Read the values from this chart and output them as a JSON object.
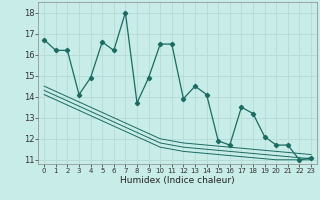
{
  "xlabel": "Humidex (Indice chaleur)",
  "bg_color": "#c8ece8",
  "grid_color": "#b8dcd8",
  "line_color": "#1a6b60",
  "xlim": [
    -0.5,
    23.5
  ],
  "ylim": [
    10.8,
    18.5
  ],
  "yticks": [
    11,
    12,
    13,
    14,
    15,
    16,
    17,
    18
  ],
  "xticks": [
    0,
    1,
    2,
    3,
    4,
    5,
    6,
    7,
    8,
    9,
    10,
    11,
    12,
    13,
    14,
    15,
    16,
    17,
    18,
    19,
    20,
    21,
    22,
    23
  ],
  "main_series": [
    16.7,
    16.2,
    16.2,
    14.1,
    14.9,
    16.6,
    16.2,
    18.0,
    13.7,
    14.9,
    16.5,
    16.5,
    13.9,
    14.5,
    14.1,
    11.9,
    11.7,
    13.5,
    13.2,
    12.1,
    11.7,
    11.7,
    11.0,
    11.1
  ],
  "reg1": [
    14.1,
    13.85,
    13.6,
    13.35,
    13.1,
    12.85,
    12.6,
    12.35,
    12.1,
    11.85,
    11.6,
    11.5,
    11.4,
    11.35,
    11.3,
    11.25,
    11.2,
    11.15,
    11.1,
    11.05,
    11.0,
    11.0,
    11.0,
    11.0
  ],
  "reg2": [
    14.3,
    14.05,
    13.8,
    13.55,
    13.3,
    13.05,
    12.8,
    12.55,
    12.3,
    12.05,
    11.8,
    11.7,
    11.6,
    11.55,
    11.5,
    11.45,
    11.4,
    11.35,
    11.3,
    11.25,
    11.2,
    11.15,
    11.1,
    11.05
  ],
  "reg3": [
    14.5,
    14.25,
    14.0,
    13.75,
    13.5,
    13.25,
    13.0,
    12.75,
    12.5,
    12.25,
    12.0,
    11.9,
    11.8,
    11.75,
    11.7,
    11.65,
    11.6,
    11.55,
    11.5,
    11.45,
    11.4,
    11.35,
    11.3,
    11.25
  ]
}
